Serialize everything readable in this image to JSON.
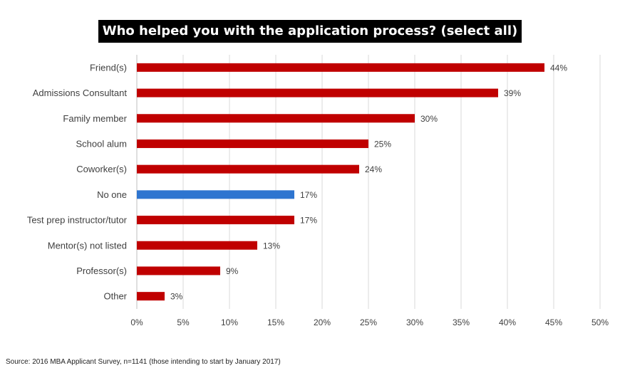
{
  "chart_data": {
    "type": "bar",
    "orientation": "horizontal",
    "title": "Who helped you with the application process? (select all)",
    "categories": [
      "Friend(s)",
      "Admissions Consultant",
      "Family member",
      "School alum",
      "Coworker(s)",
      "No one",
      "Test prep instructor/tutor",
      "Mentor(s) not listed",
      "Professor(s)",
      "Other"
    ],
    "values": [
      44,
      39,
      30,
      25,
      24,
      17,
      17,
      13,
      9,
      3
    ],
    "value_labels": [
      "44%",
      "39%",
      "30%",
      "25%",
      "24%",
      "17%",
      "17%",
      "13%",
      "9%",
      "3%"
    ],
    "bar_colors": [
      "#c00000",
      "#c00000",
      "#c00000",
      "#c00000",
      "#c00000",
      "#2e75d0",
      "#c00000",
      "#c00000",
      "#c00000",
      "#c00000"
    ],
    "xlim": [
      0,
      50
    ],
    "x_ticks": [
      "0%",
      "5%",
      "10%",
      "15%",
      "20%",
      "25%",
      "30%",
      "35%",
      "40%",
      "45%",
      "50%"
    ],
    "grid": "vertical",
    "legend": "none"
  },
  "source_note": "Source: 2016 MBA Applicant Survey, n=1141 (those intending to start by January 2017)"
}
